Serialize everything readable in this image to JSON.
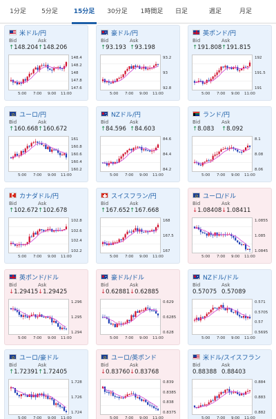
{
  "tabs": [
    {
      "label": "1分足",
      "active": false
    },
    {
      "label": "5分足",
      "active": false
    },
    {
      "label": "15分足",
      "active": true
    },
    {
      "label": "30分足",
      "active": false
    },
    {
      "label": "1時間足",
      "active": false
    },
    {
      "label": "日足",
      "active": false
    },
    {
      "label": "週足",
      "active": false
    },
    {
      "label": "月足",
      "active": false
    }
  ],
  "labels": {
    "bid": "Bid",
    "ask": "Ask"
  },
  "colors": {
    "up_bg": "#e9f2fc",
    "down_bg": "#fbecef",
    "up": "#1f8a4c",
    "down": "#d02d3a",
    "candle_up": "#d0102c",
    "candle_down": "#1e3fb5",
    "ma": "#d040d0",
    "link": "#1d5fa8"
  },
  "x_ticks": [
    "5:00",
    "7:00",
    "9:00",
    "11:00"
  ],
  "cards": [
    {
      "pair": "米ドル/円",
      "flag": "us-flag-icon",
      "dir": "up",
      "bid": "148.204",
      "ask": "148.206",
      "yticks": [
        "148.4",
        "148.2",
        "148",
        "147.8",
        "147.6"
      ],
      "ylim": [
        147.55,
        148.45
      ],
      "trend": "up"
    },
    {
      "pair": "豪ドル/円",
      "flag": "au-flag-icon",
      "dir": "up",
      "bid": "93.193",
      "ask": "93.198",
      "yticks": [
        "93.2",
        "93",
        "92.8"
      ],
      "ylim": [
        92.7,
        93.3
      ],
      "trend": "up"
    },
    {
      "pair": "英ポンド/円",
      "flag": "gb-flag-icon",
      "dir": "up",
      "bid": "191.808",
      "ask": "191.815",
      "yticks": [
        "192",
        "191.5",
        "191"
      ],
      "ylim": [
        190.9,
        192.1
      ],
      "trend": "up"
    },
    {
      "pair": "ユーロ/円",
      "flag": "eu-flag-icon",
      "dir": "up",
      "bid": "160.668",
      "ask": "160.672",
      "yticks": [
        "161",
        "160.8",
        "160.6",
        "160.4",
        "160.2"
      ],
      "ylim": [
        160.15,
        161.05
      ],
      "trend": "upmid"
    },
    {
      "pair": "NZドル/円",
      "flag": "nz-flag-icon",
      "dir": "up",
      "bid": "84.596",
      "ask": "84.603",
      "yticks": [
        "84.6",
        "84.4",
        "84.2"
      ],
      "ylim": [
        84.1,
        84.7
      ],
      "trend": "up"
    },
    {
      "pair": "ランド/円",
      "flag": "za-flag-icon",
      "dir": "up",
      "bid": "8.083",
      "ask": "8.092",
      "yticks": [
        "8.1",
        "8.08",
        "8.06"
      ],
      "ylim": [
        8.05,
        8.105
      ],
      "trend": "up"
    },
    {
      "pair": "カナダドル/円",
      "flag": "ca-flag-icon",
      "dir": "up",
      "bid": "102.672",
      "ask": "102.678",
      "yticks": [
        "102.8",
        "102.6",
        "102.4",
        "102.2"
      ],
      "ylim": [
        102.15,
        102.85
      ],
      "trend": "up"
    },
    {
      "pair": "スイスフラン/円",
      "flag": "ch-flag-icon",
      "dir": "up",
      "bid": "167.652",
      "ask": "167.668",
      "yticks": [
        "168",
        "167.5",
        "167"
      ],
      "ylim": [
        166.9,
        168.1
      ],
      "trend": "up"
    },
    {
      "pair": "ユーロ/ドル",
      "flag": "eu-flag-icon",
      "dir": "down",
      "bid": "1.08408",
      "ask": "1.08411",
      "yticks": [
        "1.0855",
        "1.085",
        "1.0845"
      ],
      "ylim": [
        1.0842,
        1.0858
      ],
      "trend": "down"
    },
    {
      "pair": "英ポンド/ドル",
      "flag": "gb-flag-icon",
      "dir": "down",
      "bid": "1.29415",
      "ask": "1.29425",
      "yticks": [
        "1.296",
        "1.295",
        "1.294"
      ],
      "ylim": [
        1.2935,
        1.2965
      ],
      "trend": "down"
    },
    {
      "pair": "豪ドル/ドル",
      "flag": "au-flag-icon",
      "dir": "down",
      "bid": "0.62881",
      "ask": "0.62885",
      "yticks": [
        "0.629",
        "0.6285",
        "0.628"
      ],
      "ylim": [
        0.6277,
        0.6293
      ],
      "trend": "flat"
    },
    {
      "pair": "NZドル/ドル",
      "flag": "nz-flag-icon",
      "dir": "none",
      "bid": "0.57075",
      "ask": "0.57089",
      "yticks": [
        "0.571",
        "0.5705",
        "0.57",
        "0.5695"
      ],
      "ylim": [
        0.5692,
        0.5712
      ],
      "trend": "upmid"
    },
    {
      "pair": "ユーロ/豪ドル",
      "flag": "eu-flag-icon",
      "dir": "up",
      "bid": "1.72391",
      "ask": "1.72405",
      "yticks": [
        "1.728",
        "1.726",
        "1.724"
      ],
      "ylim": [
        1.7232,
        1.7288
      ],
      "trend": "down"
    },
    {
      "pair": "ユーロ/英ポンド",
      "flag": "eu-flag-icon",
      "dir": "down",
      "bid": "0.83760",
      "ask": "0.83768",
      "yticks": [
        "0.839",
        "0.8385",
        "0.838",
        "0.8375"
      ],
      "ylim": [
        0.8372,
        0.8393
      ],
      "trend": "down"
    },
    {
      "pair": "米ドル/スイスフラン",
      "flag": "us-flag-icon",
      "dir": "none",
      "bid": "0.88388",
      "ask": "0.88403",
      "yticks": [
        "0.884",
        "0.883",
        "0.882"
      ],
      "ylim": [
        0.8815,
        0.8845
      ],
      "trend": "up"
    }
  ]
}
